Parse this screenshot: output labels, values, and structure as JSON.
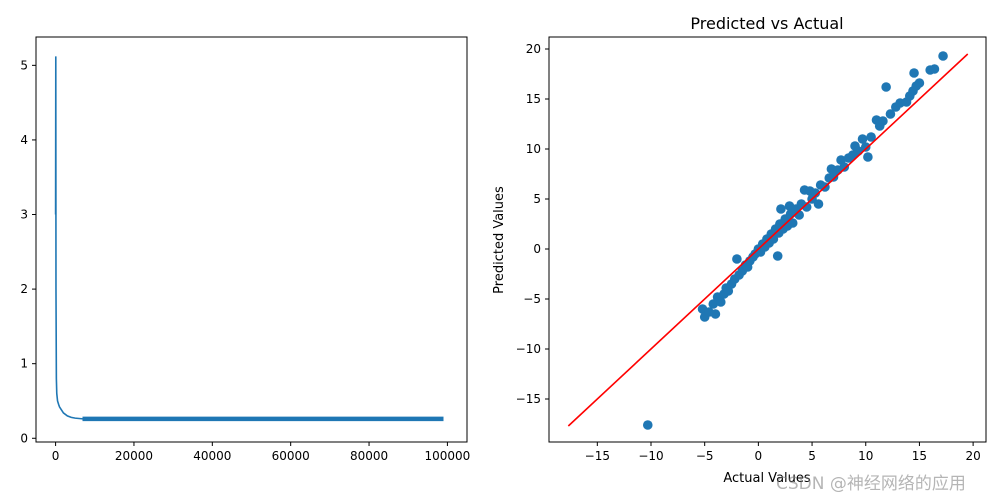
{
  "chart_data": [
    {
      "type": "line",
      "title": "",
      "xlabel": "",
      "ylabel": "",
      "xlim": [
        -5000,
        105000
      ],
      "ylim": [
        -0.05,
        5.38
      ],
      "x_ticks": [
        0,
        20000,
        40000,
        60000,
        80000,
        100000
      ],
      "x_tick_labels": [
        "0",
        "20000",
        "40000",
        "60000",
        "80000",
        "100000"
      ],
      "y_ticks": [
        0,
        1,
        2,
        3,
        4,
        5
      ],
      "y_tick_labels": [
        "0",
        "1",
        "2",
        "3",
        "4",
        "5"
      ],
      "grid": false,
      "series": [
        {
          "color": "#1f77b4",
          "x": [
            0,
            50,
            100,
            200,
            300,
            500,
            800,
            1000,
            1500,
            2000,
            3000,
            4000,
            5000,
            7000,
            10000,
            15000,
            20000,
            30000,
            40000,
            50000,
            60000,
            70000,
            80000,
            90000,
            99000
          ],
          "y": [
            3.0,
            5.12,
            2.0,
            0.8,
            0.6,
            0.5,
            0.45,
            0.42,
            0.38,
            0.34,
            0.3,
            0.28,
            0.27,
            0.26,
            0.26,
            0.26,
            0.26,
            0.26,
            0.26,
            0.26,
            0.26,
            0.26,
            0.26,
            0.26,
            0.26
          ],
          "noise_band": 0.03
        }
      ]
    },
    {
      "type": "scatter",
      "title": "Predicted vs Actual",
      "xlabel": "Actual Values",
      "ylabel": "Predicted Values",
      "xlim": [
        -19.5,
        21.2
      ],
      "ylim": [
        -19.3,
        21.2
      ],
      "x_ticks": [
        -15,
        -10,
        -5,
        0,
        5,
        10,
        15,
        20
      ],
      "x_tick_labels": [
        "−15",
        "−10",
        "−5",
        "0",
        "5",
        "10",
        "15",
        "20"
      ],
      "y_ticks": [
        -15,
        -10,
        -5,
        0,
        5,
        10,
        15,
        20
      ],
      "y_tick_labels": [
        "−15",
        "−10",
        "−5",
        "0",
        "5",
        "10",
        "15",
        "20"
      ],
      "grid": false,
      "point_color": "#1f77b4",
      "reference_line": {
        "color": "#ff0000",
        "x": [
          -17.7,
          19.5
        ],
        "y": [
          -17.7,
          19.5
        ]
      },
      "points": [
        [
          -10.3,
          -17.6
        ],
        [
          -5.2,
          -6.0
        ],
        [
          -5.0,
          -6.8
        ],
        [
          -4.6,
          -6.3
        ],
        [
          -4.2,
          -5.5
        ],
        [
          -4.0,
          -6.5
        ],
        [
          -3.8,
          -4.8
        ],
        [
          -3.5,
          -5.3
        ],
        [
          -3.2,
          -4.5
        ],
        [
          -3.0,
          -3.9
        ],
        [
          -2.8,
          -4.2
        ],
        [
          -2.5,
          -3.5
        ],
        [
          -2.2,
          -3.0
        ],
        [
          -2.0,
          -1.0
        ],
        [
          -1.8,
          -2.6
        ],
        [
          -1.5,
          -2.2
        ],
        [
          -1.2,
          -1.6
        ],
        [
          -1.0,
          -1.8
        ],
        [
          -0.8,
          -1.2
        ],
        [
          -0.5,
          -0.8
        ],
        [
          -0.3,
          -0.5
        ],
        [
          0.0,
          0.0
        ],
        [
          0.2,
          -0.3
        ],
        [
          0.4,
          0.5
        ],
        [
          0.6,
          0.2
        ],
        [
          0.8,
          1.0
        ],
        [
          1.0,
          0.6
        ],
        [
          1.2,
          1.5
        ],
        [
          1.4,
          1.0
        ],
        [
          1.6,
          2.0
        ],
        [
          1.8,
          -0.7
        ],
        [
          1.9,
          1.6
        ],
        [
          2.0,
          2.5
        ],
        [
          2.1,
          4.0
        ],
        [
          2.3,
          2.0
        ],
        [
          2.5,
          3.0
        ],
        [
          2.7,
          2.3
        ],
        [
          2.9,
          4.3
        ],
        [
          3.0,
          3.5
        ],
        [
          3.2,
          2.6
        ],
        [
          3.5,
          4.0
        ],
        [
          3.8,
          3.4
        ],
        [
          4.0,
          4.5
        ],
        [
          4.3,
          5.9
        ],
        [
          4.5,
          4.2
        ],
        [
          4.8,
          5.8
        ],
        [
          5.0,
          5.0
        ],
        [
          5.3,
          5.6
        ],
        [
          5.6,
          4.5
        ],
        [
          5.8,
          6.4
        ],
        [
          6.2,
          6.2
        ],
        [
          6.6,
          7.1
        ],
        [
          6.8,
          8.0
        ],
        [
          7.0,
          7.2
        ],
        [
          7.4,
          7.9
        ],
        [
          7.7,
          8.9
        ],
        [
          8.0,
          8.2
        ],
        [
          8.4,
          9.1
        ],
        [
          8.8,
          9.4
        ],
        [
          9.0,
          10.3
        ],
        [
          9.3,
          9.8
        ],
        [
          9.7,
          11.0
        ],
        [
          10.0,
          10.2
        ],
        [
          10.2,
          9.2
        ],
        [
          10.5,
          11.2
        ],
        [
          11.0,
          12.9
        ],
        [
          11.3,
          12.3
        ],
        [
          11.6,
          12.8
        ],
        [
          11.9,
          16.2
        ],
        [
          12.3,
          13.5
        ],
        [
          12.8,
          14.2
        ],
        [
          13.2,
          14.6
        ],
        [
          13.8,
          14.7
        ],
        [
          14.1,
          15.3
        ],
        [
          14.4,
          15.8
        ],
        [
          14.5,
          17.6
        ],
        [
          14.7,
          16.3
        ],
        [
          15.0,
          16.6
        ],
        [
          16.0,
          17.9
        ],
        [
          16.4,
          18.0
        ],
        [
          17.2,
          19.3
        ]
      ]
    }
  ],
  "watermark": "CSDN @神经网络的应用"
}
